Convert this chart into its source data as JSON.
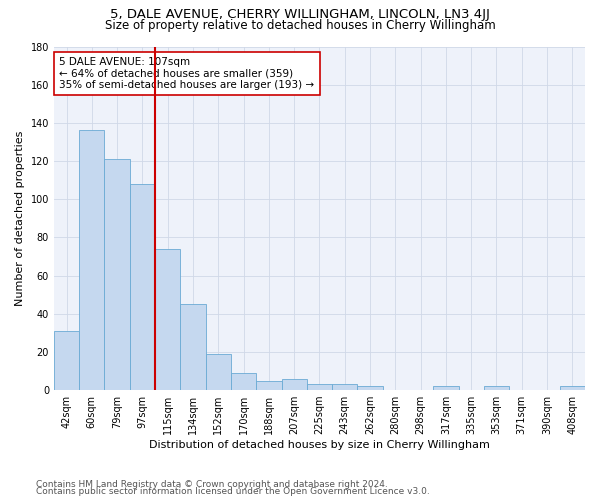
{
  "title": "5, DALE AVENUE, CHERRY WILLINGHAM, LINCOLN, LN3 4JJ",
  "subtitle": "Size of property relative to detached houses in Cherry Willingham",
  "xlabel": "Distribution of detached houses by size in Cherry Willingham",
  "ylabel": "Number of detached properties",
  "categories": [
    "42sqm",
    "60sqm",
    "79sqm",
    "97sqm",
    "115sqm",
    "134sqm",
    "152sqm",
    "170sqm",
    "188sqm",
    "207sqm",
    "225sqm",
    "243sqm",
    "262sqm",
    "280sqm",
    "298sqm",
    "317sqm",
    "335sqm",
    "353sqm",
    "371sqm",
    "390sqm",
    "408sqm"
  ],
  "values": [
    31,
    136,
    121,
    108,
    74,
    45,
    19,
    9,
    5,
    6,
    3,
    3,
    2,
    0,
    0,
    2,
    0,
    2,
    0,
    0,
    2
  ],
  "bar_color": "#c5d8ef",
  "bar_edge_color": "#6aaad4",
  "vline_x": 4.0,
  "vline_color": "#cc0000",
  "ylim": [
    0,
    180
  ],
  "yticks": [
    0,
    20,
    40,
    60,
    80,
    100,
    120,
    140,
    160,
    180
  ],
  "annotation_text": "5 DALE AVENUE: 107sqm\n← 64% of detached houses are smaller (359)\n35% of semi-detached houses are larger (193) →",
  "annotation_box_color": "#ffffff",
  "annotation_box_edge": "#cc0000",
  "footer_line1": "Contains HM Land Registry data © Crown copyright and database right 2024.",
  "footer_line2": "Contains public sector information licensed under the Open Government Licence v3.0.",
  "title_fontsize": 9.5,
  "subtitle_fontsize": 8.5,
  "xlabel_fontsize": 8,
  "ylabel_fontsize": 8,
  "tick_fontsize": 7,
  "annotation_fontsize": 7.5,
  "footer_fontsize": 6.5,
  "background_color": "#ffffff",
  "plot_bg_color": "#eef2fa",
  "grid_color": "#d0d8e8"
}
